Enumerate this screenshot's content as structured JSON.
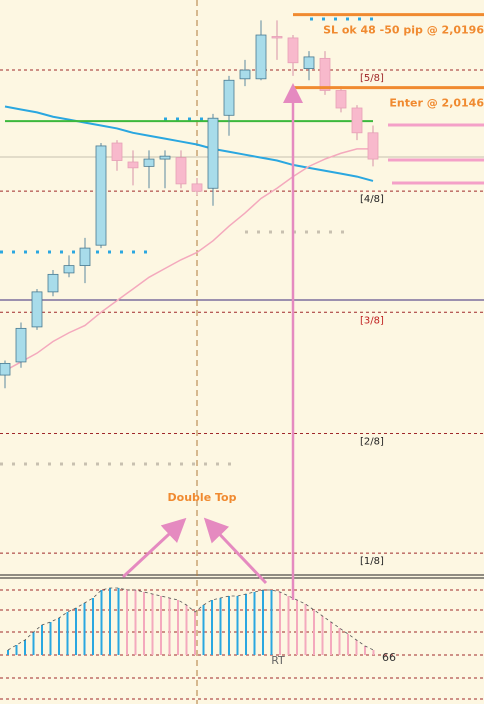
{
  "chart_data": [
    {
      "type": "candlestick",
      "open": [
        1.9949,
        1.9958,
        1.9982,
        2.0006,
        2.0019,
        2.0024,
        2.0038,
        2.0108,
        2.0095,
        2.0092,
        2.0097,
        2.0098,
        2.008,
        2.0077,
        2.0127,
        2.0152,
        2.0152,
        2.0181,
        2.018,
        2.0159,
        2.0166,
        2.0144,
        2.0132,
        2.0115
      ],
      "high": [
        1.9959,
        1.9985,
        2.0008,
        2.0021,
        2.0031,
        2.0043,
        2.0108,
        2.011,
        2.0103,
        2.0103,
        2.0103,
        2.0103,
        2.0084,
        2.0128,
        2.0154,
        2.0165,
        2.0192,
        2.0192,
        2.0182,
        2.0171,
        2.0171,
        2.0147,
        2.0134,
        2.012
      ],
      "low": [
        1.994,
        1.9954,
        1.998,
        2.0003,
        2.0016,
        2.0012,
        2.0036,
        2.0089,
        2.0079,
        2.0077,
        2.0077,
        2.0077,
        2.0072,
        2.0065,
        2.0113,
        2.0147,
        2.0151,
        2.0165,
        2.0154,
        2.0151,
        2.0141,
        2.0129,
        2.011,
        2.0092
      ],
      "close": [
        1.9957,
        1.9981,
        2.0006,
        2.0018,
        2.0024,
        2.0036,
        2.0106,
        2.0096,
        2.0091,
        2.0097,
        2.0099,
        2.008,
        2.0075,
        2.0125,
        2.0151,
        2.0158,
        2.0182,
        2.018,
        2.0163,
        2.0167,
        2.0144,
        2.0132,
        2.0115,
        2.0097
      ],
      "up_color": "#a8dcea",
      "down_color": "#f8b9cc",
      "lines": [
        {
          "color": "#2aa7e0",
          "values": [
            2.0133,
            2.0131,
            2.0129,
            2.0126,
            2.0124,
            2.0122,
            2.012,
            2.0118,
            2.0115,
            2.0113,
            2.0111,
            2.0109,
            2.0107,
            2.0104,
            2.0102,
            2.01,
            2.0098,
            2.0096,
            2.0093,
            2.0091,
            2.0089,
            2.0087,
            2.0085,
            2.0082
          ]
        },
        {
          "color": "#3cb83c",
          "values": [
            2.0123,
            2.0123,
            2.0123,
            2.0123,
            2.0123,
            2.0123,
            2.0123,
            2.0123,
            2.0123,
            2.0123,
            2.0123,
            2.0123,
            2.0123,
            2.0123,
            2.0123,
            2.0123,
            2.0123,
            2.0123,
            2.0123,
            2.0123,
            2.0123,
            2.0123,
            2.0123,
            2.0123
          ]
        },
        {
          "color": "#f4a9bd",
          "values": [
            1.9952,
            1.9958,
            1.9964,
            1.9972,
            1.9978,
            1.9983,
            1.9992,
            2.0,
            2.0008,
            2.0016,
            2.0022,
            2.0028,
            2.0033,
            2.0041,
            2.0051,
            2.006,
            2.007,
            2.0077,
            2.0085,
            2.0092,
            2.0097,
            2.0101,
            2.0104,
            2.0104
          ]
        }
      ],
      "murrey": [
        {
          "label": "[5/8]",
          "value": 2.0158,
          "color": "#a0282a"
        },
        {
          "label": "[4/8]",
          "value": 2.0075,
          "color": "#222222"
        },
        {
          "label": "[3/8]",
          "value": 1.9992,
          "color": "#c02020"
        },
        {
          "label": "[2/8]",
          "value": 1.9909,
          "color": "#222222"
        },
        {
          "label": "[1/8]",
          "value": 1.9827,
          "color": "#222222"
        }
      ],
      "trade_levels": [
        {
          "label": "SL ok 48 -50 pip @ 2,0196",
          "value": 2.0196
        },
        {
          "label": "Enter @ 2,0146",
          "value": 2.0146
        }
      ],
      "ylim": [
        1.9812,
        2.0206
      ]
    },
    {
      "type": "bar",
      "annotation": "Double Top",
      "marker": "RT",
      "period": 66,
      "values": [
        5,
        10,
        15,
        23,
        30,
        33,
        37,
        43,
        47,
        52,
        57,
        65,
        67,
        67,
        65,
        65,
        63,
        61,
        59,
        57,
        55,
        50,
        43,
        50,
        55,
        57,
        59,
        59,
        61,
        63,
        65,
        65,
        63,
        59,
        55,
        51,
        45,
        39,
        33,
        27,
        21,
        15,
        9,
        5
      ],
      "colors": [
        "#2aa7e0",
        "#2aa7e0",
        "#2aa7e0",
        "#2aa7e0",
        "#2aa7e0",
        "#2aa7e0",
        "#2aa7e0",
        "#2aa7e0",
        "#2aa7e0",
        "#2aa7e0",
        "#2aa7e0",
        "#2aa7e0",
        "#2aa7e0",
        "#2aa7e0",
        "#f4a9bd",
        "#f4a9bd",
        "#f4a9bd",
        "#f4a9bd",
        "#f4a9bd",
        "#f4a9bd",
        "#f4a9bd",
        "#f4a9bd",
        "#f4a9bd",
        "#2aa7e0",
        "#2aa7e0",
        "#2aa7e0",
        "#2aa7e0",
        "#2aa7e0",
        "#2aa7e0",
        "#2aa7e0",
        "#2aa7e0",
        "#2aa7e0",
        "#f4a9bd",
        "#f4a9bd",
        "#f4a9bd",
        "#f4a9bd",
        "#f4a9bd",
        "#f4a9bd",
        "#f4a9bd",
        "#f4a9bd",
        "#f4a9bd",
        "#f4a9bd",
        "#f4a9bd",
        "#f4a9bd"
      ],
      "ylim": [
        -45,
        77
      ]
    }
  ]
}
